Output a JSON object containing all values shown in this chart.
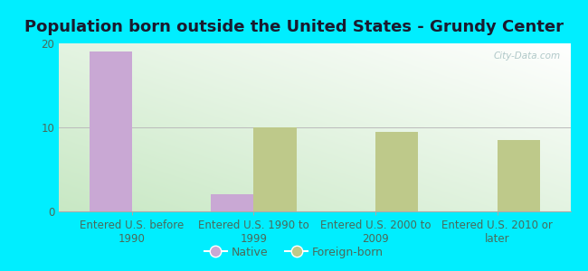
{
  "title": "Population born outside the United States - Grundy Center",
  "categories": [
    "Entered U.S. before\n1990",
    "Entered U.S. 1990 to\n1999",
    "Entered U.S. 2000 to\n2009",
    "Entered U.S. 2010 or\nlater"
  ],
  "native_values": [
    19,
    2,
    0,
    0
  ],
  "foreign_values": [
    0,
    10,
    9.5,
    8.5
  ],
  "native_color": "#c9a8d4",
  "foreign_color": "#bec98a",
  "ylim": [
    0,
    20
  ],
  "yticks": [
    0,
    10,
    20
  ],
  "bar_width": 0.35,
  "background_outer": "#00eeff",
  "background_inner_topleft": "#d8edd8",
  "background_inner_topright": "#ffffff",
  "background_inner_bottom": "#c8e8c8",
  "watermark_text": "City-Data.com",
  "legend_native": "Native",
  "legend_foreign": "Foreign-born",
  "title_fontsize": 13,
  "tick_fontsize": 8.5,
  "title_color": "#1a1a2e",
  "tick_color": "#4a6a5a",
  "grid_color": "#bbbbbb",
  "spine_color": "#aaaaaa"
}
